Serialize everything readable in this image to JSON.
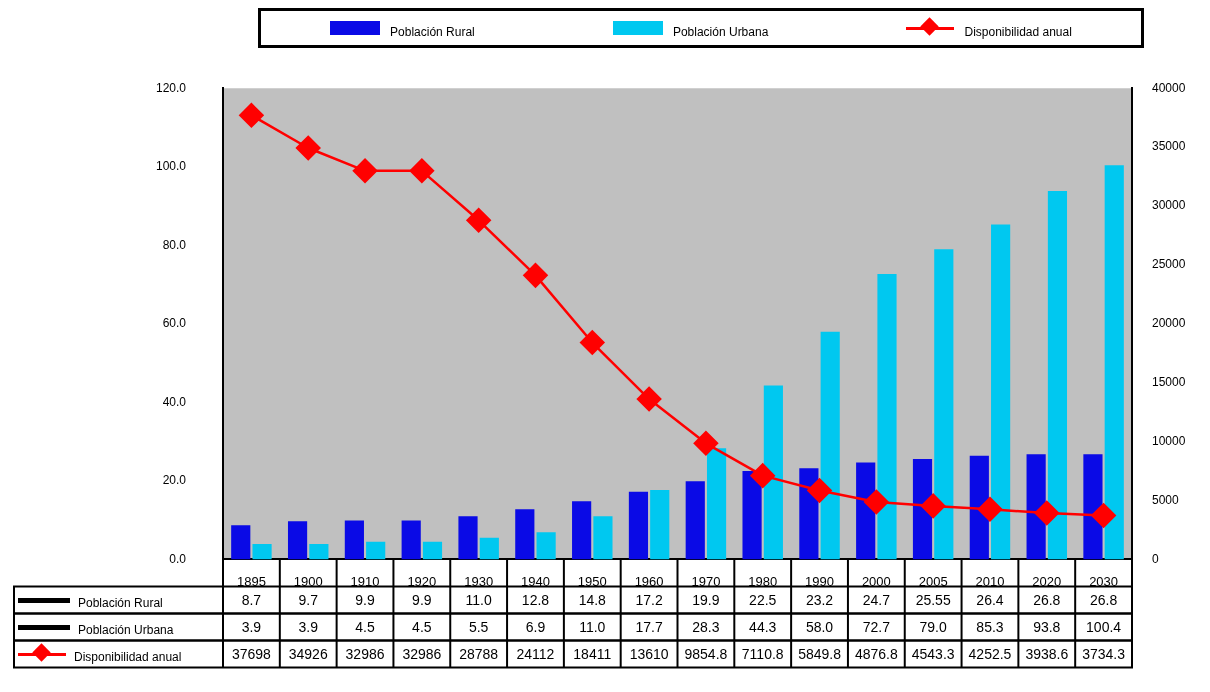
{
  "chart_data": {
    "type": "bar",
    "categories": [
      "1895",
      "1900",
      "1910",
      "1920",
      "1930",
      "1940",
      "1950",
      "1960",
      "1970",
      "1980",
      "1990",
      "2000",
      "2005",
      "2010",
      "2020",
      "2030"
    ],
    "series": [
      {
        "name": "Población Rural",
        "color": "#0a0ae6",
        "values": [
          8.7,
          9.7,
          9.9,
          9.9,
          11.0,
          12.8,
          14.8,
          17.2,
          19.9,
          22.5,
          23.2,
          24.7,
          25.55,
          26.4,
          26.8,
          26.8
        ],
        "value_labels": [
          "8.7",
          "9.7",
          "9.9",
          "9.9",
          "11.0",
          "12.8",
          "14.8",
          "17.2",
          "19.9",
          "22.5",
          "23.2",
          "24.7",
          "25.55",
          "26.4",
          "26.8",
          "26.8"
        ]
      },
      {
        "name": "Población Urbana",
        "color": "#00c8f0",
        "values": [
          3.9,
          3.9,
          4.5,
          4.5,
          5.5,
          6.9,
          11.0,
          17.7,
          28.3,
          44.3,
          58.0,
          72.7,
          79.0,
          85.3,
          93.8,
          100.4
        ],
        "value_labels": [
          "3.9",
          "3.9",
          "4.5",
          "4.5",
          "5.5",
          "6.9",
          "11.0",
          "17.7",
          "28.3",
          "44.3",
          "58.0",
          "72.7",
          "79.0",
          "85.3",
          "93.8",
          "100.4"
        ]
      },
      {
        "name": "Disponibilidad anual",
        "type": "line",
        "axis": "y2",
        "color": "#ff0000",
        "marker": "diamond",
        "values": [
          37698,
          34926,
          32986,
          32986,
          28788,
          24112,
          18411,
          13610,
          9854.8,
          7110.8,
          5849.8,
          4876.8,
          4543.3,
          4252.5,
          3938.6,
          3734.3
        ],
        "value_labels": [
          "37698",
          "34926",
          "32986",
          "32986",
          "28788",
          "24112",
          "18411",
          "13610",
          "9854.8",
          "7110.8",
          "5849.8",
          "4876.8",
          "4543.3",
          "4252.5",
          "3938.6",
          "3734.3"
        ]
      }
    ],
    "ylim": [
      0,
      120
    ],
    "yticks": [
      {
        "value": 0,
        "label": "0.0"
      },
      {
        "value": 20,
        "label": "20.0"
      },
      {
        "value": 40,
        "label": "40.0"
      },
      {
        "value": 60,
        "label": "60.0"
      },
      {
        "value": 80,
        "label": "80.0"
      },
      {
        "value": 100,
        "label": "100.0"
      },
      {
        "value": 120,
        "label": "120.0"
      }
    ],
    "y2lim": [
      0,
      40000
    ],
    "y2ticks": [
      0,
      5000,
      10000,
      15000,
      20000,
      25000,
      30000,
      35000,
      40000
    ],
    "legend": "top",
    "grid": false
  }
}
